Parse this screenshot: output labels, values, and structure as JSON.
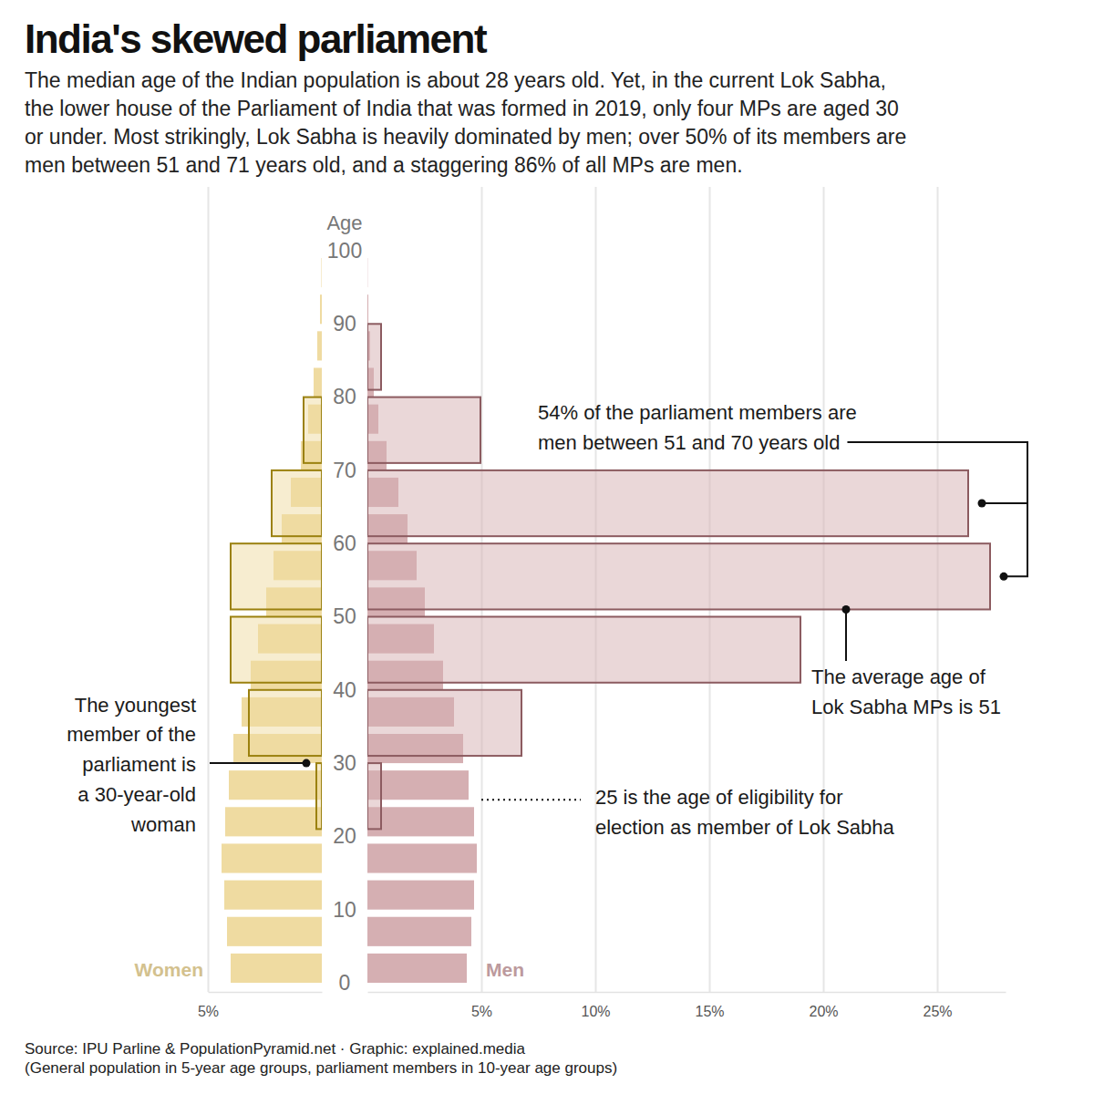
{
  "chart_data": {
    "type": "bar",
    "title": "India's skewed parliament",
    "subtitle": [
      "The median age of the Indian population is about 28 years old. Yet, in the current Lok Sabha,",
      "the lower house of the Parliament of India that was formed in 2019, only four MPs are aged 30",
      "or under. Most strikingly, Lok Sabha is heavily dominated by men; over 50% of its members are",
      "men between 51 and 71 years old, and a staggering 86% of all MPs are men."
    ],
    "ylabel": "Age",
    "ylim": [
      0,
      100
    ],
    "yticks": [
      0,
      10,
      20,
      30,
      40,
      50,
      60,
      70,
      80,
      90,
      100
    ],
    "grid": true,
    "population_ages": [
      0,
      5,
      10,
      15,
      20,
      25,
      30,
      35,
      40,
      45,
      50,
      55,
      60,
      65,
      70,
      75,
      80,
      85,
      90,
      95
    ],
    "parliament_ages": [
      [
        21,
        30
      ],
      [
        31,
        40
      ],
      [
        41,
        50
      ],
      [
        51,
        60
      ],
      [
        61,
        70
      ],
      [
        71,
        80
      ],
      [
        81,
        90
      ]
    ],
    "panels": [
      {
        "name": "Women",
        "xlim": [
          0,
          5
        ],
        "xticks": [
          {
            "value": 5,
            "label": "5%"
          }
        ],
        "series": [
          {
            "type": "bar",
            "color": "#efdba1",
            "values": [
              4.0,
              4.16,
              4.28,
              4.4,
              4.24,
              4.08,
              3.88,
              3.52,
              3.12,
              2.8,
              2.44,
              2.12,
              1.76,
              1.36,
              0.92,
              0.6,
              0.36,
              0.2,
              0.08,
              0.02
            ]
          },
          {
            "type": "box",
            "color": "#9b810f",
            "values": [
              0.24,
              3.2,
              4.0,
              4.0,
              2.2,
              0.8,
              null
            ]
          }
        ]
      },
      {
        "name": "Men",
        "xlim": [
          0,
          28
        ],
        "xticks": [
          {
            "value": 5,
            "label": "5%"
          },
          {
            "value": 10,
            "label": "10%"
          },
          {
            "value": 15,
            "label": "15%"
          },
          {
            "value": 20,
            "label": "20%"
          },
          {
            "value": 25,
            "label": "25%"
          }
        ],
        "series": [
          {
            "type": "bar",
            "color": "#d5afb2",
            "values": [
              4.36,
              4.56,
              4.68,
              4.8,
              4.68,
              4.44,
              4.2,
              3.8,
              3.32,
              2.92,
              2.52,
              2.16,
              1.76,
              1.36,
              0.84,
              0.48,
              0.28,
              0.12,
              0.04,
              0.01
            ]
          },
          {
            "type": "box",
            "color": "#8c5b60",
            "values": [
              0.6,
              6.76,
              19.0,
              27.32,
              26.36,
              4.96,
              0.6
            ]
          }
        ]
      }
    ],
    "annotations": [
      {
        "text": [
          "54% of the parliament members are",
          "men between 51 and 70 years old"
        ],
        "age_range": [
          51,
          70
        ]
      },
      {
        "text": [
          "The average age of",
          "Lok Sabha MPs is 51"
        ],
        "age": 51
      },
      {
        "text": [
          "The youngest",
          "member of the",
          "parliament is",
          "a 30-year-old",
          "woman"
        ],
        "age": 30
      },
      {
        "text": [
          "25 is the age of eligibility for",
          "election as member of Lok Sabha"
        ],
        "age": 25
      }
    ],
    "source": "Source: IPU Parline & PopulationPyramid.net · Graphic: explained.media",
    "note": "(General population in 5-year age groups, parliament members in 10-year age groups)"
  }
}
